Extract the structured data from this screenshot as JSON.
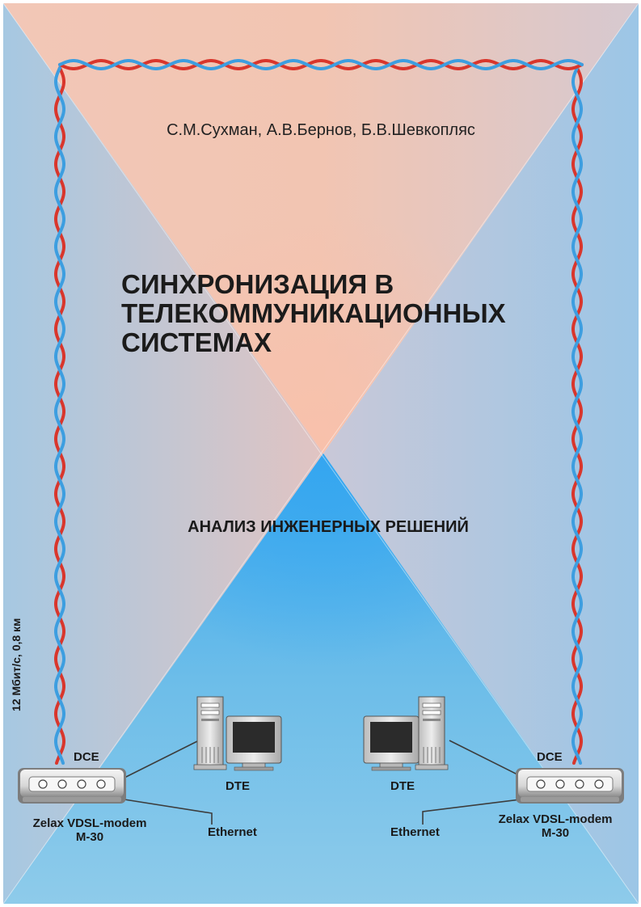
{
  "authors": "С.М.Сухман, А.В.Бернов, Б.В.Шевкопляс",
  "title_lines": [
    "СИНХРОНИЗАЦИЯ В",
    "ТЕЛЕКОММУНИКАЦИОННЫХ",
    "СИСТЕМАХ"
  ],
  "subtitle": "АНАЛИЗ ИНЖЕНЕРНЫХ РЕШЕНИЙ",
  "line_label": "12 Мбит/с, 0,8 км",
  "left": {
    "dce": "DCE",
    "dte": "DTE",
    "ethernet": "Ethernet",
    "modem_line1": "Zelax VDSL-modem",
    "modem_line2": "M-30"
  },
  "right": {
    "dce": "DCE",
    "dte": "DTE",
    "ethernet": "Ethernet",
    "modem_line1": "Zelax VDSL-modem",
    "modem_line2": "M-30"
  },
  "colors": {
    "top_tint": "#f3c7b5",
    "bottom_tint": "#7cc6ee",
    "wire_red": "#d9362c",
    "wire_blue": "#3d9ee0"
  }
}
